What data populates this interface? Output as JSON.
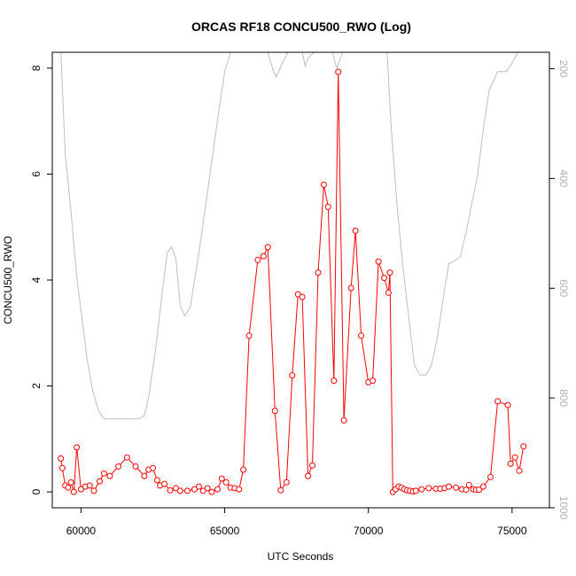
{
  "chart_data": {
    "type": "line",
    "title": "ORCAS RF18 CONCU500_RWO (Log)",
    "xlabel": "UTC Seconds",
    "ylabel": "CONCU500_RWO",
    "xlim": [
      59000,
      76300
    ],
    "ylim": [
      -0.3,
      8.3
    ],
    "y2lim": [
      1000,
      170
    ],
    "xticks": [
      60000,
      65000,
      70000,
      75000
    ],
    "yticks": [
      0,
      2,
      4,
      6,
      8
    ],
    "y2ticks": [
      200,
      400,
      600,
      800,
      1000
    ],
    "grid": false,
    "colors": {
      "series": "#ff0000",
      "secondary": "#bebebe"
    },
    "series": [
      {
        "axis": "left",
        "marker": "open-circle",
        "x": [
          59300,
          59350,
          59450,
          59550,
          59650,
          59750,
          59850,
          60000,
          60150,
          60300,
          60450,
          60650,
          60800,
          61000,
          61300,
          61600,
          61900,
          62200,
          62350,
          62500,
          62650,
          62750,
          62900,
          63100,
          63300,
          63450,
          63700,
          63950,
          64100,
          64250,
          64400,
          64550,
          64750,
          64900,
          65050,
          65200,
          65350,
          65500,
          65650,
          65850,
          66150,
          66350,
          66500,
          66750,
          66950,
          67150,
          67350,
          67550,
          67700,
          67900,
          68050,
          68250,
          68450,
          68600,
          68800,
          68950,
          69150,
          69400,
          69550,
          69750,
          70000,
          70150,
          70350,
          70550,
          70700,
          70750,
          70850,
          70950,
          71050,
          71150,
          71250,
          71350,
          71450,
          71550,
          71650,
          71850,
          72100,
          72350,
          72500,
          72650,
          72800,
          73050,
          73250,
          73400,
          73500,
          73650,
          73750,
          73850,
          74000,
          74250,
          74500,
          74850,
          74950,
          75100,
          75250,
          75400
        ],
        "y": [
          0.63,
          0.45,
          0.12,
          0.08,
          0.18,
          0.0,
          0.84,
          0.05,
          0.1,
          0.12,
          0.02,
          0.2,
          0.35,
          0.3,
          0.48,
          0.65,
          0.48,
          0.3,
          0.42,
          0.45,
          0.22,
          0.12,
          0.15,
          0.03,
          0.07,
          0.02,
          0.02,
          0.05,
          0.1,
          0.02,
          0.07,
          0.0,
          0.05,
          0.25,
          0.18,
          0.08,
          0.07,
          0.05,
          0.42,
          2.95,
          4.38,
          4.45,
          4.62,
          1.53,
          0.03,
          0.18,
          2.2,
          3.73,
          3.68,
          0.3,
          0.5,
          4.14,
          5.8,
          5.38,
          2.1,
          7.93,
          1.35,
          3.85,
          4.93,
          2.95,
          2.07,
          2.1,
          4.35,
          4.04,
          3.76,
          4.14,
          0.0,
          0.05,
          0.1,
          0.08,
          0.05,
          0.03,
          0.02,
          0.01,
          0.02,
          0.05,
          0.07,
          0.06,
          0.06,
          0.07,
          0.1,
          0.08,
          0.05,
          0.04,
          0.13,
          0.05,
          0.04,
          0.04,
          0.1,
          0.28,
          1.71,
          1.64,
          0.53,
          0.65,
          0.4,
          0.86
        ]
      },
      {
        "axis": "right",
        "marker": "none",
        "x": [
          59300,
          59450,
          59650,
          59850,
          60050,
          60200,
          60400,
          60600,
          60800,
          61000,
          61500,
          62000,
          62200,
          62350,
          62600,
          62800,
          63000,
          63150,
          63300,
          63450,
          63600,
          63800,
          64000,
          64200,
          64400,
          64600,
          64800,
          65000,
          65200,
          65400,
          65600,
          65850,
          66050,
          66300,
          66500,
          66700,
          66800,
          67000,
          67200,
          67400,
          67600,
          67700,
          67800,
          67900,
          68100,
          68300,
          68450,
          68550,
          68650,
          68750,
          68900,
          69100,
          69300,
          69500,
          69700,
          69900,
          70100,
          70300,
          70500,
          70650,
          70800,
          71000,
          71200,
          71400,
          71600,
          71800,
          72000,
          72200,
          72400,
          72600,
          72800,
          73000,
          73200,
          73400,
          73600,
          73800,
          74000,
          74200,
          74500,
          74800,
          75000,
          75200,
          75400
        ],
        "y": [
          170,
          355,
          460,
          580,
          660,
          725,
          785,
          822,
          838,
          838,
          838,
          838,
          832,
          800,
          710,
          620,
          535,
          525,
          545,
          630,
          650,
          635,
          570,
          500,
          425,
          350,
          275,
          205,
          170,
          170,
          170,
          170,
          170,
          170,
          170,
          205,
          215,
          190,
          170,
          170,
          170,
          170,
          195,
          180,
          170,
          170,
          170,
          170,
          170,
          170,
          200,
          170,
          170,
          170,
          170,
          170,
          170,
          170,
          170,
          170,
          310,
          450,
          560,
          650,
          740,
          758,
          758,
          740,
          690,
          620,
          555,
          550,
          542,
          498,
          445,
          395,
          310,
          240,
          205,
          205,
          190,
          170,
          170
        ]
      }
    ]
  }
}
